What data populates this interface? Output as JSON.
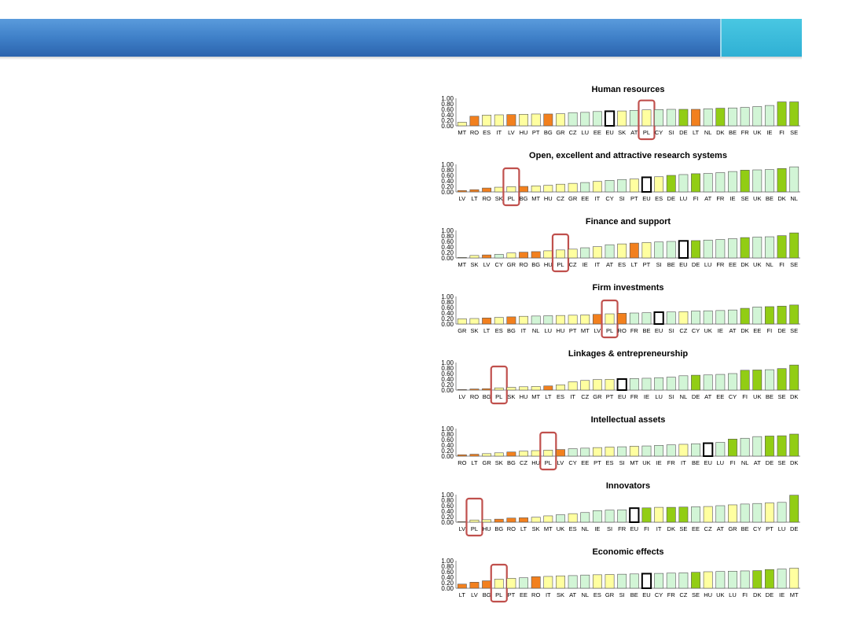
{
  "header": {
    "color": "#3f80c8",
    "accent_color": "#2fb0d4"
  },
  "highlight": {
    "label": "PL",
    "box_color": "#c0504d"
  },
  "legend_colors": {
    "orange": "#f2801e",
    "light_yellow": "#ffffa0",
    "light_green": "#d2f5d6",
    "dark_green": "#92cd14",
    "eu_fill": "#ffffff",
    "eu_edge": "#000000"
  },
  "chart_data": [
    {
      "type": "bar",
      "title": "Human resources",
      "ylim": [
        0,
        1
      ],
      "yticks": [
        "1.00",
        "0.80",
        "0.60",
        "0.40",
        "0.20",
        "0.00"
      ],
      "categories": [
        "MT",
        "RO",
        "ES",
        "IT",
        "LV",
        "HU",
        "PT",
        "BG",
        "GR",
        "CZ",
        "LU",
        "EE",
        "EU",
        "SK",
        "AT",
        "PL",
        "CY",
        "SI",
        "DE",
        "LT",
        "NL",
        "DK",
        "BE",
        "FR",
        "UK",
        "IE",
        "FI",
        "SE"
      ],
      "values": [
        0.13,
        0.35,
        0.39,
        0.4,
        0.41,
        0.42,
        0.43,
        0.43,
        0.44,
        0.48,
        0.49,
        0.52,
        0.53,
        0.54,
        0.56,
        0.58,
        0.59,
        0.6,
        0.6,
        0.6,
        0.62,
        0.64,
        0.65,
        0.67,
        0.7,
        0.74,
        0.87,
        0.87
      ],
      "colors": [
        "y",
        "o",
        "y",
        "y",
        "o",
        "y",
        "y",
        "o",
        "y",
        "g",
        "g",
        "g",
        "e",
        "y",
        "g",
        "y",
        "g",
        "g",
        "d",
        "o",
        "g",
        "d",
        "g",
        "g",
        "g",
        "g",
        "d",
        "d"
      ]
    },
    {
      "type": "bar",
      "title": "Open, excellent and attractive research systems",
      "ylim": [
        0,
        1
      ],
      "yticks": [
        "1.00",
        "0.80",
        "0.60",
        "0.40",
        "0.20",
        "0.00"
      ],
      "categories": [
        "LV",
        "LT",
        "RO",
        "SK",
        "PL",
        "BG",
        "MT",
        "HU",
        "CZ",
        "GR",
        "EE",
        "IT",
        "CY",
        "SI",
        "PT",
        "EU",
        "ES",
        "DE",
        "LU",
        "FI",
        "AT",
        "FR",
        "IE",
        "SE",
        "UK",
        "BE",
        "DK",
        "NL"
      ],
      "values": [
        0.05,
        0.08,
        0.14,
        0.17,
        0.19,
        0.2,
        0.22,
        0.24,
        0.28,
        0.31,
        0.34,
        0.38,
        0.42,
        0.45,
        0.47,
        0.53,
        0.55,
        0.6,
        0.63,
        0.66,
        0.67,
        0.7,
        0.74,
        0.79,
        0.8,
        0.81,
        0.85,
        0.91
      ],
      "colors": [
        "o",
        "o",
        "o",
        "y",
        "y",
        "o",
        "y",
        "y",
        "y",
        "y",
        "g",
        "y",
        "g",
        "g",
        "y",
        "e",
        "y",
        "d",
        "g",
        "d",
        "g",
        "g",
        "g",
        "d",
        "g",
        "g",
        "d",
        "g"
      ]
    },
    {
      "type": "bar",
      "title": "Finance and support",
      "ylim": [
        0,
        1
      ],
      "yticks": [
        "1.00",
        "0.80",
        "0.60",
        "0.40",
        "0.20",
        "0.00"
      ],
      "categories": [
        "MT",
        "SK",
        "LV",
        "CY",
        "GR",
        "RO",
        "BG",
        "HU",
        "PL",
        "CZ",
        "IE",
        "IT",
        "AT",
        "ES",
        "LT",
        "PT",
        "SI",
        "BE",
        "EU",
        "DE",
        "LU",
        "FR",
        "EE",
        "DK",
        "UK",
        "NL",
        "FI",
        "SE"
      ],
      "values": [
        0.02,
        0.09,
        0.11,
        0.13,
        0.18,
        0.21,
        0.23,
        0.26,
        0.29,
        0.32,
        0.37,
        0.41,
        0.48,
        0.51,
        0.54,
        0.56,
        0.58,
        0.6,
        0.62,
        0.63,
        0.65,
        0.67,
        0.7,
        0.74,
        0.76,
        0.77,
        0.81,
        0.91
      ],
      "colors": [
        "y",
        "y",
        "o",
        "g",
        "y",
        "o",
        "o",
        "y",
        "y",
        "y",
        "g",
        "y",
        "g",
        "y",
        "o",
        "y",
        "g",
        "g",
        "e",
        "d",
        "g",
        "g",
        "g",
        "d",
        "g",
        "g",
        "d",
        "d"
      ]
    },
    {
      "type": "bar",
      "title": "Firm investments",
      "ylim": [
        0,
        1
      ],
      "yticks": [
        "1.00",
        "0.80",
        "0.60",
        "0.40",
        "0.20",
        "0.00"
      ],
      "categories": [
        "GR",
        "SK",
        "LT",
        "ES",
        "BG",
        "IT",
        "NL",
        "LU",
        "HU",
        "PT",
        "MT",
        "LV",
        "PL",
        "RO",
        "FR",
        "BE",
        "EU",
        "SI",
        "CZ",
        "CY",
        "UK",
        "IE",
        "AT",
        "DK",
        "EE",
        "FI",
        "DE",
        "SE"
      ],
      "values": [
        0.19,
        0.2,
        0.22,
        0.24,
        0.26,
        0.28,
        0.29,
        0.3,
        0.31,
        0.32,
        0.33,
        0.35,
        0.37,
        0.39,
        0.4,
        0.41,
        0.43,
        0.44,
        0.45,
        0.47,
        0.48,
        0.49,
        0.51,
        0.57,
        0.62,
        0.63,
        0.65,
        0.69
      ],
      "colors": [
        "y",
        "y",
        "o",
        "y",
        "o",
        "y",
        "g",
        "g",
        "y",
        "y",
        "y",
        "o",
        "y",
        "o",
        "g",
        "g",
        "e",
        "g",
        "y",
        "g",
        "g",
        "g",
        "g",
        "d",
        "g",
        "d",
        "d",
        "d"
      ]
    },
    {
      "type": "bar",
      "title": "Linkages & entrepreneurship",
      "ylim": [
        0,
        1
      ],
      "yticks": [
        "1.00",
        "0.80",
        "0.60",
        "0.40",
        "0.20",
        "0.00"
      ],
      "categories": [
        "LV",
        "RO",
        "BG",
        "PL",
        "SK",
        "HU",
        "MT",
        "LT",
        "ES",
        "IT",
        "CZ",
        "GR",
        "PT",
        "EU",
        "FR",
        "IE",
        "LU",
        "SI",
        "NL",
        "DE",
        "AT",
        "EE",
        "CY",
        "FI",
        "UK",
        "BE",
        "SE",
        "DK"
      ],
      "values": [
        0.02,
        0.04,
        0.05,
        0.08,
        0.1,
        0.12,
        0.13,
        0.15,
        0.19,
        0.3,
        0.35,
        0.38,
        0.39,
        0.4,
        0.42,
        0.43,
        0.45,
        0.47,
        0.52,
        0.54,
        0.55,
        0.57,
        0.6,
        0.72,
        0.73,
        0.74,
        0.78,
        0.91
      ],
      "colors": [
        "o",
        "o",
        "o",
        "y",
        "y",
        "y",
        "y",
        "o",
        "y",
        "y",
        "y",
        "y",
        "y",
        "e",
        "g",
        "g",
        "g",
        "g",
        "g",
        "d",
        "g",
        "g",
        "g",
        "d",
        "d",
        "g",
        "d",
        "d"
      ]
    },
    {
      "type": "bar",
      "title": "Intellectual assets",
      "ylim": [
        0,
        1
      ],
      "yticks": [
        "1.00",
        "0.80",
        "0.60",
        "0.40",
        "0.20",
        "0.00"
      ],
      "categories": [
        "RO",
        "LT",
        "GR",
        "SK",
        "BG",
        "CZ",
        "HU",
        "PL",
        "LV",
        "CY",
        "EE",
        "PT",
        "ES",
        "SI",
        "MT",
        "UK",
        "IE",
        "FR",
        "IT",
        "BE",
        "EU",
        "LU",
        "FI",
        "NL",
        "AT",
        "DE",
        "SE",
        "DK"
      ],
      "values": [
        0.05,
        0.07,
        0.09,
        0.12,
        0.15,
        0.18,
        0.2,
        0.22,
        0.24,
        0.27,
        0.29,
        0.31,
        0.33,
        0.34,
        0.36,
        0.37,
        0.39,
        0.41,
        0.43,
        0.45,
        0.47,
        0.5,
        0.62,
        0.65,
        0.71,
        0.73,
        0.74,
        0.8
      ],
      "colors": [
        "o",
        "o",
        "y",
        "y",
        "o",
        "y",
        "y",
        "y",
        "o",
        "g",
        "g",
        "y",
        "y",
        "g",
        "y",
        "g",
        "g",
        "g",
        "y",
        "g",
        "e",
        "g",
        "d",
        "g",
        "g",
        "d",
        "d",
        "d"
      ]
    },
    {
      "type": "bar",
      "title": "Innovators",
      "ylim": [
        0,
        1
      ],
      "yticks": [
        "1.00",
        "0.80",
        "0.60",
        "0.40",
        "0.20",
        "0.00"
      ],
      "categories": [
        "LV",
        "PL",
        "HU",
        "BG",
        "RO",
        "LT",
        "SK",
        "MT",
        "UK",
        "ES",
        "NL",
        "IE",
        "SI",
        "FR",
        "EU",
        "FI",
        "IT",
        "DK",
        "SE",
        "EE",
        "CZ",
        "AT",
        "GR",
        "BE",
        "CY",
        "PT",
        "LU",
        "DE"
      ],
      "values": [
        0.02,
        0.08,
        0.09,
        0.11,
        0.15,
        0.16,
        0.18,
        0.23,
        0.27,
        0.31,
        0.35,
        0.42,
        0.44,
        0.45,
        0.51,
        0.52,
        0.54,
        0.54,
        0.55,
        0.56,
        0.57,
        0.6,
        0.63,
        0.66,
        0.68,
        0.7,
        0.72,
        0.98
      ],
      "colors": [
        "o",
        "y",
        "y",
        "o",
        "o",
        "o",
        "y",
        "y",
        "g",
        "y",
        "g",
        "g",
        "g",
        "g",
        "e",
        "d",
        "y",
        "d",
        "d",
        "g",
        "y",
        "g",
        "y",
        "g",
        "g",
        "y",
        "g",
        "d"
      ]
    },
    {
      "type": "bar",
      "title": "Economic effects",
      "ylim": [
        0,
        1
      ],
      "yticks": [
        "1.00",
        "0.80",
        "0.60",
        "0.40",
        "0.20",
        "0.00"
      ],
      "categories": [
        "LT",
        "LV",
        "BG",
        "PL",
        "PT",
        "EE",
        "RO",
        "IT",
        "SK",
        "AT",
        "NL",
        "ES",
        "GR",
        "SI",
        "BE",
        "EU",
        "CY",
        "FR",
        "CZ",
        "SE",
        "HU",
        "UK",
        "LU",
        "FI",
        "DK",
        "DE",
        "IE",
        "MT"
      ],
      "values": [
        0.15,
        0.22,
        0.27,
        0.33,
        0.36,
        0.38,
        0.42,
        0.43,
        0.45,
        0.46,
        0.48,
        0.49,
        0.5,
        0.51,
        0.52,
        0.53,
        0.54,
        0.55,
        0.56,
        0.58,
        0.6,
        0.61,
        0.62,
        0.63,
        0.64,
        0.68,
        0.7,
        0.73
      ],
      "colors": [
        "o",
        "o",
        "o",
        "y",
        "y",
        "g",
        "o",
        "y",
        "y",
        "g",
        "g",
        "y",
        "y",
        "g",
        "g",
        "e",
        "g",
        "g",
        "g",
        "d",
        "y",
        "g",
        "g",
        "g",
        "d",
        "d",
        "g",
        "y"
      ]
    }
  ]
}
